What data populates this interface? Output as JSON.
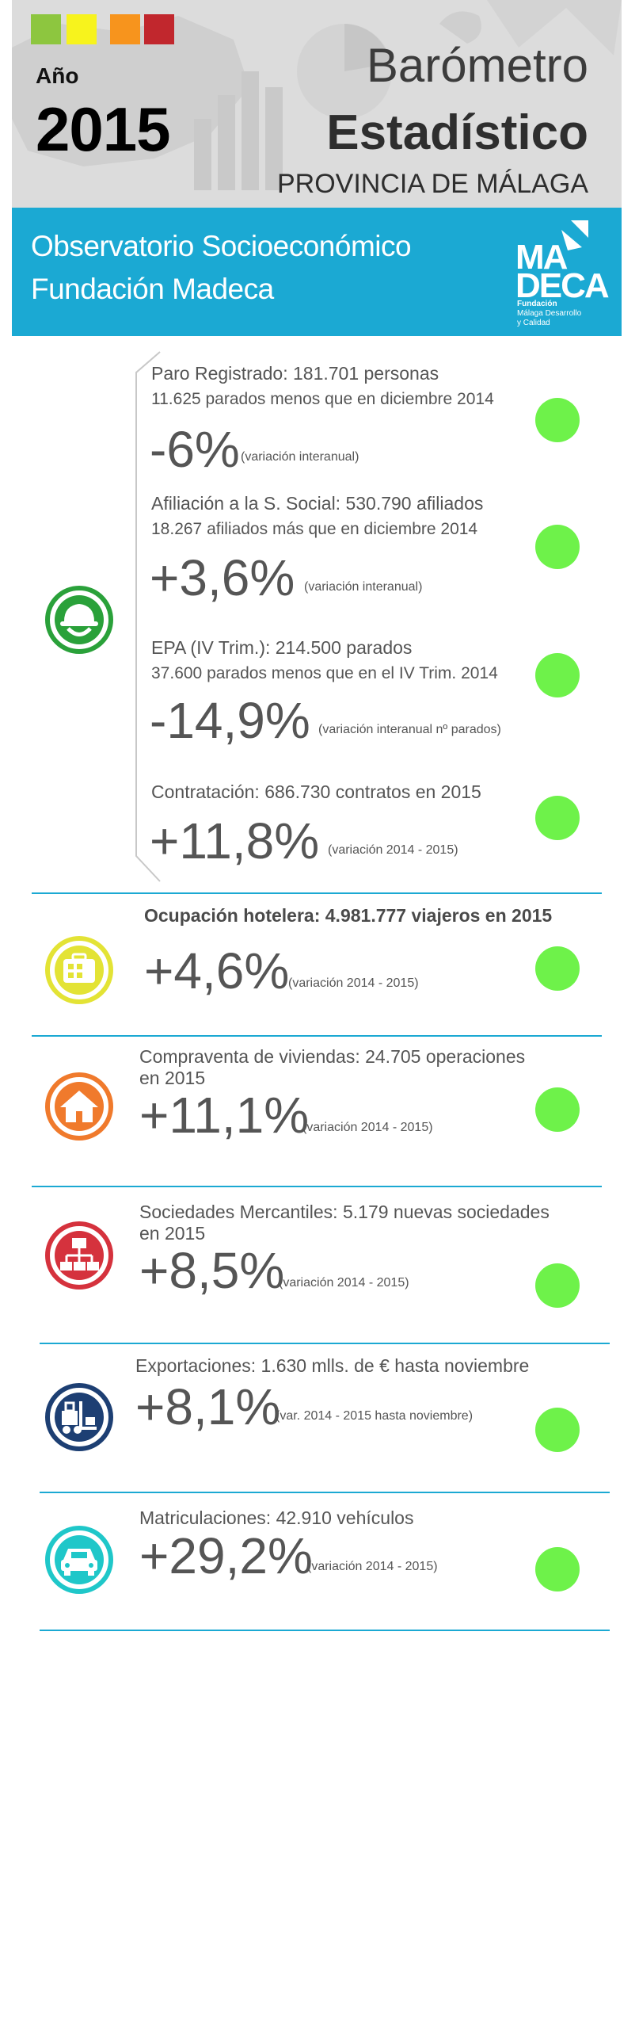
{
  "header": {
    "legend_colors": [
      "#8dc63f",
      "#f7f31d",
      "#f7941d",
      "#c1272d"
    ],
    "year_label": "Año",
    "year": "2015",
    "title_line1": "Barómetro",
    "title_line2": "Estadístico",
    "title_line3": "PROVINCIA DE MÁLAGA"
  },
  "banner": {
    "line1": "Observatorio Socioeconómico",
    "line2": "Fundación Madeca",
    "logo_top": "MA",
    "logo_bottom": "DECA",
    "logo_sub1": "Fundación",
    "logo_sub2": "Málaga Desarrollo",
    "logo_sub3": "y Calidad"
  },
  "colors": {
    "accent": "#1ba9d3",
    "indicator": "#6ef24a",
    "employment_icon": "#2aa13a",
    "hotel_icon": "#e3e335",
    "housing_icon": "#f07a2c",
    "companies_icon": "#d5323d",
    "exports_icon": "#1d3f73",
    "vehicles_icon": "#1fc7c9"
  },
  "employment": {
    "icon": "worker-helmet-icon",
    "items": [
      {
        "title": "Paro Registrado:  181.701 personas",
        "detail": "11.625 parados menos que en diciembre 2014",
        "value": "-6%",
        "note": "(variación interanual)"
      },
      {
        "title": "Afiliación a la S. Social: 530.790 afiliados",
        "detail": "18.267 afiliados más que en diciembre 2014",
        "value": "+3,6%",
        "note": "(variación interanual)"
      },
      {
        "title": "EPA (IV Trim.): 214.500 parados",
        "detail": "37.600 parados menos que en el IV Trim. 2014",
        "value": "-14,9%",
        "note": "(variación interanual nº parados)"
      },
      {
        "title": "Contratación: 686.730 contratos en 2015",
        "value": "+11,8%",
        "note": "(variación 2014 - 2015)"
      }
    ]
  },
  "sections": [
    {
      "icon": "suitcase-icon",
      "title": "Ocupación hotelera: 4.981.777 viajeros en 2015",
      "value": "+4,6%",
      "note": "(variación 2014 - 2015)"
    },
    {
      "icon": "house-icon",
      "title": "Compraventa de viviendas: 24.705 operaciones",
      "title2": "en 2015",
      "value": "+11,1%",
      "note": "(variación 2014 - 2015)"
    },
    {
      "icon": "org-chart-icon",
      "title": "Sociedades Mercantiles: 5.179 nuevas sociedades",
      "title2": "en 2015",
      "value": "+8,5%",
      "note": "(variación 2014 - 2015)"
    },
    {
      "icon": "forklift-icon",
      "title": "Exportaciones: 1.630 mlls. de € hasta noviembre",
      "value": "+8,1%",
      "note": "(var.  2014 - 2015 hasta noviembre)"
    },
    {
      "icon": "car-icon",
      "title": "Matriculaciones: 42.910 vehículos",
      "value": "+29,2%",
      "note": "(variación 2014 - 2015)"
    }
  ]
}
